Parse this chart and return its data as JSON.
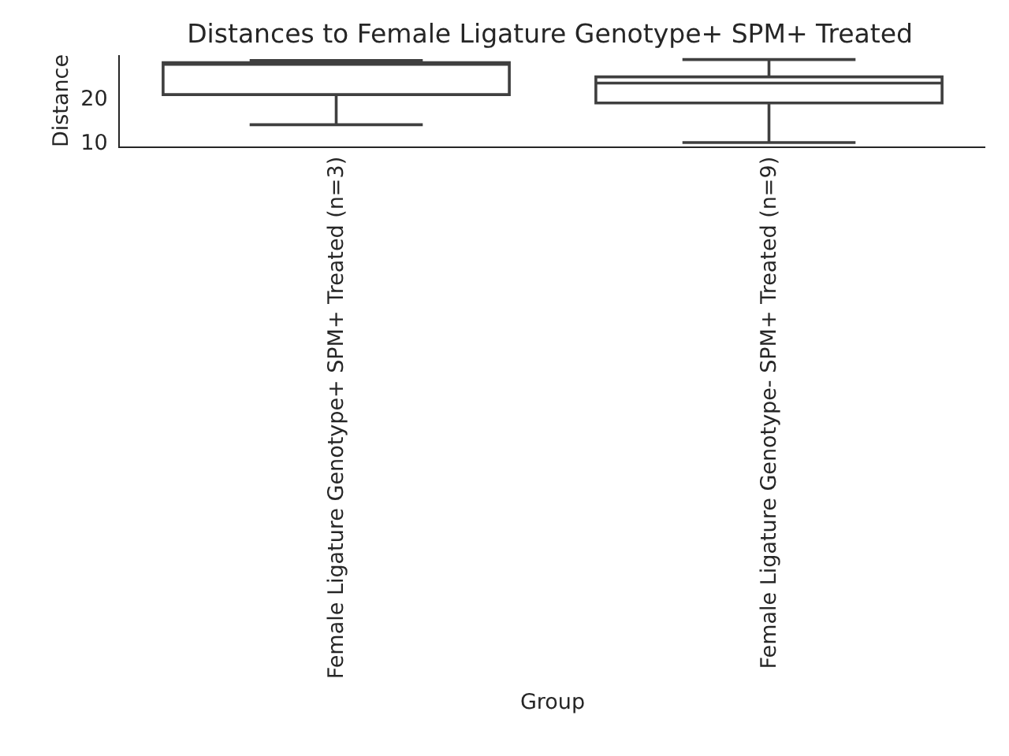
{
  "chart_data": {
    "type": "box",
    "title": "Distances to Female Ligature Genotype+ SPM+ Treated",
    "xlabel": "Group",
    "ylabel": "Distance",
    "categories": [
      "Female Ligature Genotype+ SPM+ Treated (n=3)",
      "Female Ligature Genotype- SPM+ Treated (n=9)"
    ],
    "series": [
      {
        "color": "#3f3f3f",
        "boxes": [
          {
            "low": 13.9,
            "q1": 20.7,
            "median": 27.8,
            "q3": 27.9,
            "high": 28.4
          },
          {
            "low": 9.9,
            "q1": 18.8,
            "median": 23.3,
            "q3": 24.7,
            "high": 28.6
          }
        ]
      }
    ],
    "ylim": [
      9.0,
      29.6
    ],
    "yticks": [
      10,
      20
    ]
  }
}
